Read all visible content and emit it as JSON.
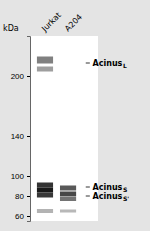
{
  "chart_data": {
    "type": "blot",
    "ylabel": "kDa",
    "ylim": [
      55,
      240
    ],
    "yticks": [
      60,
      80,
      100,
      140,
      200
    ],
    "grid": false,
    "lanes": [
      {
        "label": "Jurkat",
        "values": [
          216,
          207,
          91,
          86,
          81,
          65
        ],
        "heights": [
          7,
          5,
          5,
          5,
          5,
          4
        ],
        "intensity": [
          0.5,
          0.38,
          0.8,
          0.9,
          0.78,
          0.3
        ]
      },
      {
        "label": "A204",
        "values": [
          88,
          82,
          77,
          65
        ],
        "heights": [
          5,
          5,
          4,
          3
        ],
        "intensity": [
          0.65,
          0.72,
          0.55,
          0.28
        ]
      }
    ],
    "annotations": [
      {
        "label": "Acinus",
        "subscript": "L",
        "value": 213
      },
      {
        "label": "Acinus",
        "subscript": "S",
        "value": 89
      },
      {
        "label": "Acinus",
        "subscript": "S'",
        "value": 80
      }
    ]
  }
}
